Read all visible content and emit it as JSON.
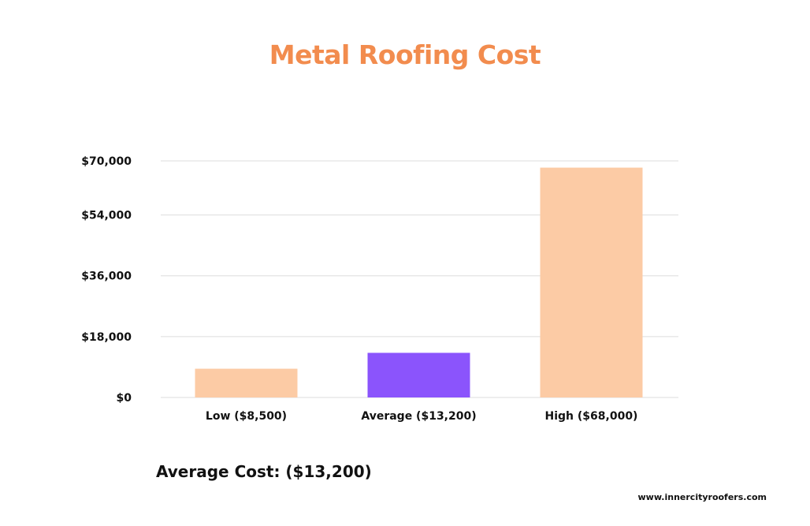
{
  "colors": {
    "title": "#F28C4E",
    "bar_default": "#FCCBA5",
    "bar_highlight": "#8B54FC",
    "grid": "#dddddd"
  },
  "chart_data": {
    "type": "bar",
    "title": "Metal Roofing Cost",
    "categories": [
      "Low ($8,500)",
      "Average ($13,200)",
      "High ($68,000)"
    ],
    "values": [
      8500,
      13200,
      68000
    ],
    "highlight_index": 1,
    "ylim": [
      0,
      70000
    ],
    "yticks": [
      0,
      18000,
      36000,
      54000,
      70000
    ],
    "ytick_labels": [
      "$0",
      "$18,000",
      "$36,000",
      "$54,000",
      "$70,000"
    ],
    "xlabel": "",
    "ylabel": "",
    "grid": true,
    "legend": "none"
  },
  "footer": {
    "average_note": "Average Cost: ($13,200)",
    "url": "www.innercityroofers.com"
  }
}
